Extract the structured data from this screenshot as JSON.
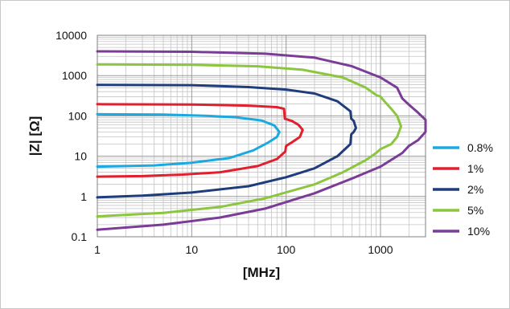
{
  "chart_data": {
    "type": "line",
    "xlabel": "[MHz]",
    "ylabel": "|Z| [Ω]",
    "x_scale": "log",
    "y_scale": "log",
    "xlim": [
      1,
      3000
    ],
    "ylim": [
      0.1,
      10000
    ],
    "x_ticks": [
      "1",
      "10",
      "100",
      "1000"
    ],
    "y_ticks": [
      "10000",
      "1000",
      "100",
      "10",
      "1",
      "0.1"
    ],
    "grid": true,
    "legend_position": "right",
    "series": [
      {
        "name": "0.8%",
        "color": "#1ba9e1",
        "points": [
          [
            1,
            110
          ],
          [
            5,
            108
          ],
          [
            15,
            100
          ],
          [
            30,
            92
          ],
          [
            55,
            77
          ],
          [
            75,
            58
          ],
          [
            85,
            40
          ],
          [
            80,
            30
          ],
          [
            65,
            22
          ],
          [
            45,
            14
          ],
          [
            25,
            9
          ],
          [
            10,
            6.9
          ],
          [
            4,
            5.9
          ],
          [
            1,
            5.5
          ]
        ]
      },
      {
        "name": "1%",
        "color": "#e1202f",
        "points": [
          [
            1,
            195
          ],
          [
            10,
            192
          ],
          [
            40,
            180
          ],
          [
            80,
            165
          ],
          [
            95,
            150
          ],
          [
            97,
            85
          ],
          [
            115,
            75
          ],
          [
            135,
            60
          ],
          [
            150,
            45
          ],
          [
            140,
            30
          ],
          [
            115,
            22
          ],
          [
            100,
            18
          ],
          [
            98,
            13
          ],
          [
            80,
            8.5
          ],
          [
            50,
            5.7
          ],
          [
            20,
            4
          ],
          [
            8,
            3.5
          ],
          [
            3,
            3.2
          ],
          [
            1,
            3.1
          ]
        ]
      },
      {
        "name": "2%",
        "color": "#1f3d7a",
        "points": [
          [
            1,
            590
          ],
          [
            10,
            580
          ],
          [
            40,
            520
          ],
          [
            100,
            450
          ],
          [
            200,
            360
          ],
          [
            350,
            230
          ],
          [
            480,
            130
          ],
          [
            490,
            85
          ],
          [
            520,
            75
          ],
          [
            550,
            50
          ],
          [
            520,
            40
          ],
          [
            490,
            35
          ],
          [
            480,
            20
          ],
          [
            350,
            10
          ],
          [
            200,
            5
          ],
          [
            100,
            3
          ],
          [
            40,
            1.8
          ],
          [
            10,
            1.25
          ],
          [
            3,
            1.05
          ],
          [
            1,
            0.95
          ]
        ]
      },
      {
        "name": "5%",
        "color": "#8cc63f",
        "points": [
          [
            1,
            1900
          ],
          [
            10,
            1850
          ],
          [
            50,
            1700
          ],
          [
            150,
            1400
          ],
          [
            400,
            900
          ],
          [
            700,
            500
          ],
          [
            900,
            330
          ],
          [
            1000,
            300
          ],
          [
            1100,
            230
          ],
          [
            1300,
            150
          ],
          [
            1500,
            100
          ],
          [
            1650,
            55
          ],
          [
            1500,
            30
          ],
          [
            1300,
            20
          ],
          [
            1000,
            15
          ],
          [
            900,
            12
          ],
          [
            700,
            8
          ],
          [
            400,
            4
          ],
          [
            200,
            2
          ],
          [
            60,
            0.9
          ],
          [
            20,
            0.55
          ],
          [
            5,
            0.39
          ],
          [
            1,
            0.32
          ]
        ]
      },
      {
        "name": "10%",
        "color": "#7a3c96",
        "points": [
          [
            1,
            4000
          ],
          [
            10,
            3900
          ],
          [
            60,
            3500
          ],
          [
            200,
            2800
          ],
          [
            500,
            1700
          ],
          [
            1000,
            900
          ],
          [
            1500,
            500
          ],
          [
            1700,
            270
          ],
          [
            2000,
            190
          ],
          [
            2500,
            120
          ],
          [
            3000,
            80
          ],
          [
            3000,
            40
          ],
          [
            2500,
            25
          ],
          [
            2000,
            18
          ],
          [
            1700,
            12
          ],
          [
            1500,
            10
          ],
          [
            1000,
            5.5
          ],
          [
            500,
            2.8
          ],
          [
            200,
            1.2
          ],
          [
            60,
            0.5
          ],
          [
            20,
            0.3
          ],
          [
            5,
            0.2
          ],
          [
            1,
            0.15
          ]
        ]
      }
    ]
  }
}
